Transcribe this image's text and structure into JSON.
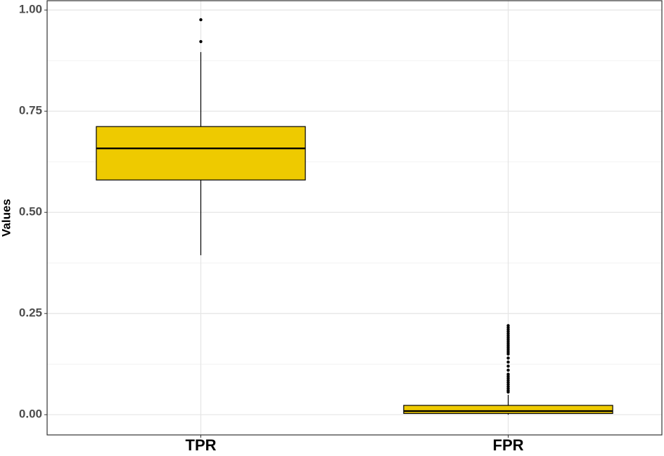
{
  "chart_data": {
    "type": "box",
    "y_label": "Values",
    "categories": [
      "TPR",
      "FPR"
    ],
    "color": "#EECA00",
    "boxes": [
      {
        "min": 0.394,
        "q1": 0.58,
        "median": 0.658,
        "q3": 0.712,
        "max": 0.896,
        "outliers": [
          0.922,
          0.976
        ]
      },
      {
        "min": 0.0,
        "q1": 0.003,
        "median": 0.009,
        "q3": 0.023,
        "max": 0.049,
        "outliers": [
          0.056,
          0.06,
          0.065,
          0.07,
          0.075,
          0.08,
          0.085,
          0.09,
          0.095,
          0.1,
          0.11,
          0.12,
          0.13,
          0.14,
          0.15,
          0.155,
          0.16,
          0.165,
          0.17,
          0.175,
          0.18,
          0.185,
          0.19,
          0.195,
          0.2,
          0.205,
          0.21,
          0.215,
          0.22
        ]
      }
    ],
    "ylim": [
      -0.05,
      1.023
    ],
    "yticks": [
      {
        "value": 0,
        "label": "0.00"
      },
      {
        "value": 0.25,
        "label": "0.25"
      },
      {
        "value": 0.5,
        "label": "0.50"
      },
      {
        "value": 0.75,
        "label": "0.75"
      },
      {
        "value": 1,
        "label": "1.00"
      }
    ],
    "y_minor_ticks": [
      0.125,
      0.375,
      0.625,
      0.875
    ],
    "grid": true
  }
}
